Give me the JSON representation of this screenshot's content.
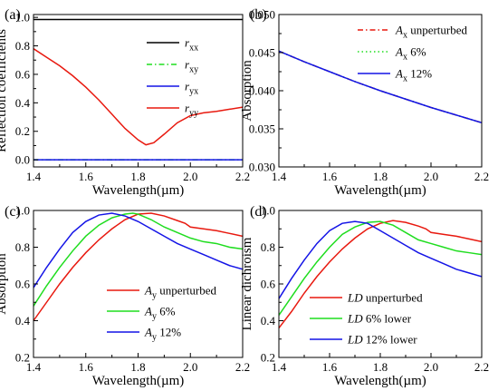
{
  "colors": {
    "black": "#000000",
    "red": "#e8190f",
    "green": "#1fdd1f",
    "blue": "#1414e6"
  },
  "chart_data": [
    {
      "panel": "(a)",
      "type": "line",
      "xlabel": "Wavelength(µm)",
      "ylabel": "Reflection coefficients",
      "xlim": [
        1.4,
        2.2
      ],
      "ylim": [
        -0.05,
        1.02
      ],
      "xticks": [
        "1.4",
        "1.6",
        "1.8",
        "2.0",
        "2.2"
      ],
      "yticks": [
        "0.0",
        "0.2",
        "0.4",
        "0.6",
        "0.8",
        "1.0"
      ],
      "legend": "right",
      "series": [
        {
          "name": "r",
          "sub": "xx",
          "color": "#000000",
          "dash": "",
          "x": [
            1.4,
            1.6,
            1.8,
            2.0,
            2.2
          ],
          "y": [
            0.985,
            0.985,
            0.985,
            0.985,
            0.985
          ]
        },
        {
          "name": "r",
          "sub": "xy",
          "color": "#1fdd1f",
          "dash": "6,3,1.5,3",
          "x": [
            1.4,
            1.6,
            1.8,
            2.0,
            2.2
          ],
          "y": [
            0.0,
            0.0,
            0.0,
            0.0,
            0.0
          ]
        },
        {
          "name": "r",
          "sub": "yx",
          "color": "#1414e6",
          "dash": "",
          "x": [
            1.4,
            1.6,
            1.8,
            2.0,
            2.2
          ],
          "y": [
            0.0,
            0.0,
            0.0,
            0.0,
            0.0
          ]
        },
        {
          "name": "r",
          "sub": "yy",
          "color": "#e8190f",
          "dash": "",
          "x": [
            1.4,
            1.45,
            1.5,
            1.55,
            1.6,
            1.65,
            1.7,
            1.75,
            1.8,
            1.83,
            1.86,
            1.9,
            1.95,
            2.0,
            2.05,
            2.1,
            2.15,
            2.2
          ],
          "y": [
            0.78,
            0.72,
            0.66,
            0.59,
            0.51,
            0.42,
            0.32,
            0.22,
            0.14,
            0.105,
            0.12,
            0.18,
            0.26,
            0.31,
            0.33,
            0.34,
            0.355,
            0.37
          ]
        }
      ]
    },
    {
      "panel": "(b)",
      "type": "line",
      "xlabel": "Wavelength(µm)",
      "ylabel": "Absorption",
      "xlim": [
        1.4,
        2.2
      ],
      "ylim": [
        0.03,
        0.05
      ],
      "xticks": [
        "1.4",
        "1.6",
        "1.8",
        "2.0",
        "2.2"
      ],
      "yticks": [
        "0.030",
        "0.035",
        "0.040",
        "0.045",
        "0.050"
      ],
      "legend": "top-right",
      "series": [
        {
          "name": "A",
          "sub": "x",
          "suffix": " unperturbed",
          "color": "#e8190f",
          "dash": "6,3,1.5,3",
          "x": [
            1.4,
            1.5,
            1.6,
            1.7,
            1.8,
            1.9,
            2.0,
            2.1,
            2.2
          ],
          "y": [
            0.0452,
            0.0438,
            0.0425,
            0.0412,
            0.04,
            0.0389,
            0.0378,
            0.0368,
            0.0358
          ]
        },
        {
          "name": "A",
          "sub": "x",
          "suffix": " 6%",
          "color": "#1fdd1f",
          "dash": "1.5,3",
          "x": [
            1.4,
            1.5,
            1.6,
            1.7,
            1.8,
            1.9,
            2.0,
            2.1,
            2.2
          ],
          "y": [
            0.0452,
            0.0438,
            0.0425,
            0.0412,
            0.04,
            0.0389,
            0.0378,
            0.0368,
            0.0358
          ]
        },
        {
          "name": "A",
          "sub": "x",
          "suffix": " 12%",
          "color": "#1414e6",
          "dash": "",
          "x": [
            1.4,
            1.5,
            1.6,
            1.7,
            1.8,
            1.9,
            2.0,
            2.1,
            2.2
          ],
          "y": [
            0.0452,
            0.0438,
            0.0425,
            0.0412,
            0.04,
            0.0389,
            0.0378,
            0.0368,
            0.0358
          ]
        }
      ]
    },
    {
      "panel": "(c)",
      "type": "line",
      "xlabel": "Wavelength(µm)",
      "ylabel": "Absorption",
      "xlim": [
        1.4,
        2.2
      ],
      "ylim": [
        0.2,
        1.0
      ],
      "xticks": [
        "1.4",
        "1.6",
        "1.8",
        "2.0",
        "2.2"
      ],
      "yticks": [
        "0.2",
        "0.4",
        "0.6",
        "0.8",
        "1.0"
      ],
      "legend": "bottom-right",
      "series": [
        {
          "name": "A",
          "sub": "y",
          "suffix": " unperturbed",
          "color": "#e8190f",
          "dash": "",
          "x": [
            1.4,
            1.45,
            1.5,
            1.55,
            1.6,
            1.65,
            1.7,
            1.75,
            1.8,
            1.85,
            1.9,
            1.95,
            1.98,
            2.0,
            2.05,
            2.1,
            2.15,
            2.2
          ],
          "y": [
            0.4,
            0.5,
            0.6,
            0.69,
            0.77,
            0.84,
            0.9,
            0.95,
            0.98,
            0.985,
            0.97,
            0.945,
            0.93,
            0.91,
            0.9,
            0.89,
            0.875,
            0.86
          ]
        },
        {
          "name": "A",
          "sub": "y",
          "suffix": " 6%",
          "color": "#1fdd1f",
          "dash": "",
          "x": [
            1.4,
            1.45,
            1.5,
            1.55,
            1.6,
            1.65,
            1.7,
            1.75,
            1.78,
            1.8,
            1.85,
            1.9,
            1.95,
            2.0,
            2.05,
            2.1,
            2.15,
            2.2
          ],
          "y": [
            0.48,
            0.59,
            0.69,
            0.78,
            0.86,
            0.92,
            0.96,
            0.98,
            0.985,
            0.98,
            0.95,
            0.91,
            0.88,
            0.85,
            0.83,
            0.82,
            0.8,
            0.79
          ]
        },
        {
          "name": "A",
          "sub": "y",
          "suffix": " 12%",
          "color": "#1414e6",
          "dash": "",
          "x": [
            1.4,
            1.45,
            1.5,
            1.55,
            1.6,
            1.65,
            1.7,
            1.75,
            1.8,
            1.85,
            1.9,
            1.95,
            2.0,
            2.05,
            2.1,
            2.15,
            2.2
          ],
          "y": [
            0.58,
            0.69,
            0.79,
            0.88,
            0.94,
            0.975,
            0.985,
            0.97,
            0.94,
            0.9,
            0.86,
            0.82,
            0.79,
            0.76,
            0.73,
            0.7,
            0.68
          ]
        }
      ]
    },
    {
      "panel": "(d)",
      "type": "line",
      "xlabel": "Wavelength(µm)",
      "ylabel": "Linear dichroism",
      "xlim": [
        1.4,
        2.2
      ],
      "ylim": [
        0.2,
        1.0
      ],
      "xticks": [
        "1.4",
        "1.6",
        "1.8",
        "2.0",
        "2.2"
      ],
      "yticks": [
        "0.2",
        "0.4",
        "0.6",
        "0.8",
        "1.0"
      ],
      "legend": "bottom-right",
      "series": [
        {
          "name": "LD",
          "sub": "",
          "suffix": " unperturbed",
          "color": "#e8190f",
          "dash": "",
          "x": [
            1.4,
            1.45,
            1.5,
            1.55,
            1.6,
            1.65,
            1.7,
            1.75,
            1.8,
            1.85,
            1.9,
            1.95,
            1.98,
            2.0,
            2.05,
            2.1,
            2.15,
            2.2
          ],
          "y": [
            0.36,
            0.45,
            0.55,
            0.64,
            0.72,
            0.79,
            0.85,
            0.9,
            0.93,
            0.945,
            0.935,
            0.915,
            0.9,
            0.88,
            0.87,
            0.86,
            0.845,
            0.83
          ]
        },
        {
          "name": "LD",
          "sub": "",
          "suffix": " 6% lower",
          "color": "#1fdd1f",
          "dash": "",
          "x": [
            1.4,
            1.45,
            1.5,
            1.55,
            1.6,
            1.65,
            1.7,
            1.75,
            1.8,
            1.85,
            1.9,
            1.95,
            2.0,
            2.05,
            2.1,
            2.15,
            2.2
          ],
          "y": [
            0.43,
            0.53,
            0.63,
            0.72,
            0.8,
            0.87,
            0.91,
            0.935,
            0.94,
            0.92,
            0.88,
            0.84,
            0.82,
            0.8,
            0.78,
            0.77,
            0.76
          ]
        },
        {
          "name": "LD",
          "sub": "",
          "suffix": " 12% lower",
          "color": "#1414e6",
          "dash": "",
          "x": [
            1.4,
            1.45,
            1.5,
            1.55,
            1.6,
            1.65,
            1.7,
            1.75,
            1.8,
            1.85,
            1.9,
            1.95,
            2.0,
            2.05,
            2.1,
            2.15,
            2.2
          ],
          "y": [
            0.52,
            0.63,
            0.73,
            0.82,
            0.89,
            0.93,
            0.94,
            0.93,
            0.89,
            0.85,
            0.81,
            0.77,
            0.74,
            0.71,
            0.68,
            0.66,
            0.64
          ]
        }
      ]
    }
  ]
}
